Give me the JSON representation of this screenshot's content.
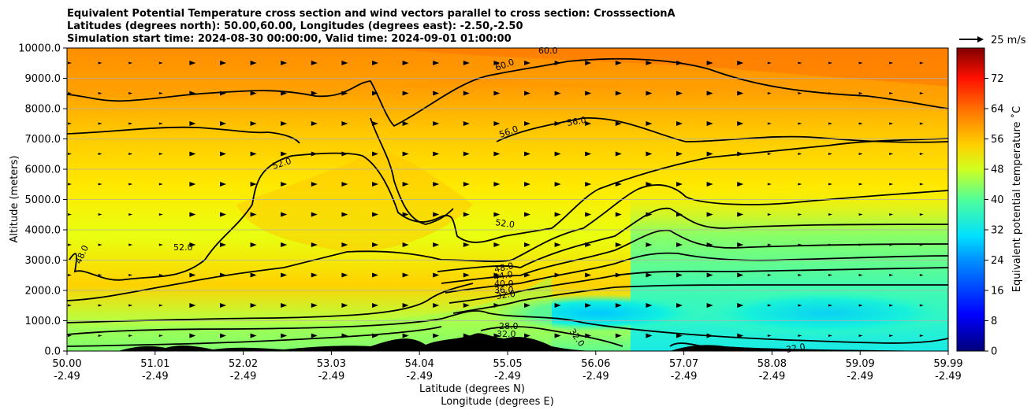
{
  "chart_data": {
    "type": "contour",
    "title_lines": [
      "Equivalent Potential Temperature cross section and wind vectors parallel to cross section: CrosssectionA",
      "Latitudes (degrees north): 50.00,60.00, Longitudes (degrees east): -2.50,-2.50",
      "Simulation start time: 2024-08-30 00:00:00, Valid time: 2024-09-01 01:00:00"
    ],
    "xlabel_lines": [
      "Latitude (degrees N)",
      "Longitude (degrees E)"
    ],
    "ylabel": "Altitude (meters)",
    "xlim": [
      50.0,
      59.99
    ],
    "ylim": [
      0,
      10000
    ],
    "x_ticks": [
      {
        "lat": "50.00",
        "lon": "-2.49"
      },
      {
        "lat": "51.01",
        "lon": "-2.49"
      },
      {
        "lat": "52.02",
        "lon": "-2.49"
      },
      {
        "lat": "53.03",
        "lon": "-2.49"
      },
      {
        "lat": "54.04",
        "lon": "-2.49"
      },
      {
        "lat": "55.05",
        "lon": "-2.49"
      },
      {
        "lat": "56.06",
        "lon": "-2.49"
      },
      {
        "lat": "57.07",
        "lon": "-2.49"
      },
      {
        "lat": "58.08",
        "lon": "-2.49"
      },
      {
        "lat": "59.09",
        "lon": "-2.49"
      },
      {
        "lat": "59.99",
        "lon": "-2.49"
      }
    ],
    "y_ticks": [
      "0.0",
      "1000.0",
      "2000.0",
      "3000.0",
      "4000.0",
      "5000.0",
      "6000.0",
      "7000.0",
      "8000.0",
      "9000.0",
      "10000.0"
    ],
    "y_tick_values": [
      0,
      1000,
      2000,
      3000,
      4000,
      5000,
      6000,
      7000,
      8000,
      9000,
      10000
    ],
    "contour_labels": [
      "60.0",
      "60.0",
      "56.0",
      "56.0",
      "52.0",
      "52.0",
      "52.0",
      "48.0",
      "48.0",
      "44.0",
      "40.0",
      "36.0",
      "32.0",
      "32.0",
      "32.0",
      "32.0",
      "28.0"
    ],
    "colorbar": {
      "label": "Equivalent potential temperature ˚C",
      "range": [
        0,
        80
      ],
      "ticks": [
        "0",
        "8",
        "16",
        "24",
        "32",
        "40",
        "48",
        "56",
        "64",
        "72"
      ],
      "tick_values": [
        0,
        8,
        16,
        24,
        32,
        40,
        48,
        56,
        64,
        72
      ]
    },
    "quiver_key": {
      "label": "25 m/s",
      "value": 25
    }
  }
}
